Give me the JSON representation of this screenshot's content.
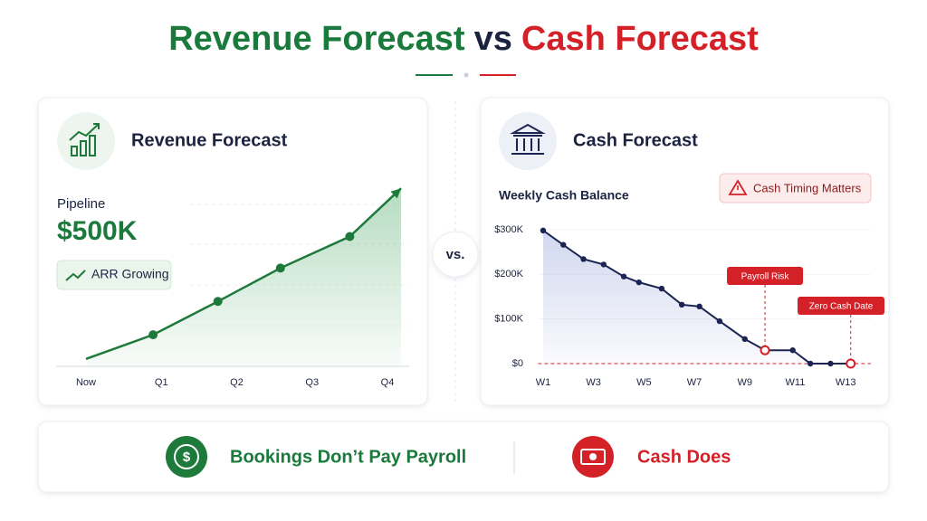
{
  "header": {
    "title_left": "Revenue Forecast",
    "title_mid": "vs",
    "title_right": "Cash Forecast"
  },
  "revenue_panel": {
    "title": "Revenue Forecast",
    "metric_label": "Pipeline",
    "metric_value": "$500K",
    "badge": "ARR Growing"
  },
  "versus": "vs.",
  "cash_panel": {
    "title": "Cash Forecast",
    "alert": "Cash Timing Matters"
  },
  "chart_data": [
    {
      "type": "line",
      "color": "#1e7a3a",
      "x": [
        0,
        0.89,
        1.75,
        2.58,
        3.5,
        4.18
      ],
      "values": [
        4,
        17,
        35,
        53,
        70,
        96
      ],
      "xlim": [
        0,
        4.18
      ],
      "ylim": [
        0,
        100
      ],
      "xticks": [
        {
          "value": 0,
          "label": "Now"
        },
        {
          "value": 1,
          "label": "Q1"
        },
        {
          "value": 2,
          "label": "Q2"
        },
        {
          "value": 3,
          "label": "Q3"
        },
        {
          "value": 4,
          "label": "Q4"
        }
      ]
    },
    {
      "type": "line",
      "title": "Weekly Cash Balance",
      "color": "#1c2552",
      "x": [
        1.0,
        1.8,
        2.6,
        3.4,
        4.2,
        4.8,
        5.7,
        6.5,
        7.2,
        8.0,
        9.0,
        9.8,
        10.9,
        11.6,
        12.4,
        13.2
      ],
      "values": [
        298000,
        266000,
        234000,
        222000,
        195000,
        182000,
        168000,
        132000,
        128000,
        95000,
        55000,
        30000,
        30000,
        0,
        0,
        0
      ],
      "xlim": [
        0.8,
        14
      ],
      "ylim": [
        0,
        320000
      ],
      "xticks": [
        {
          "value": 1,
          "label": "W1"
        },
        {
          "value": 3,
          "label": "W3"
        },
        {
          "value": 5,
          "label": "W5"
        },
        {
          "value": 7,
          "label": "W7"
        },
        {
          "value": 9,
          "label": "W9"
        },
        {
          "value": 11,
          "label": "W11"
        },
        {
          "value": 13,
          "label": "W13"
        }
      ],
      "yticks": [
        {
          "value": 0,
          "label": "$0"
        },
        {
          "value": 100000,
          "label": "$100K"
        },
        {
          "value": 200000,
          "label": "$200K"
        },
        {
          "value": 300000,
          "label": "$300K"
        }
      ],
      "annotations": [
        {
          "text": "Payroll Risk",
          "x": 9.8,
          "y": 30000
        },
        {
          "text": "Zero Cash Date",
          "x": 13.2,
          "y": 0
        }
      ]
    }
  ],
  "footer": {
    "left": "Bookings Don’t Pay Payroll",
    "right": "Cash Does"
  }
}
